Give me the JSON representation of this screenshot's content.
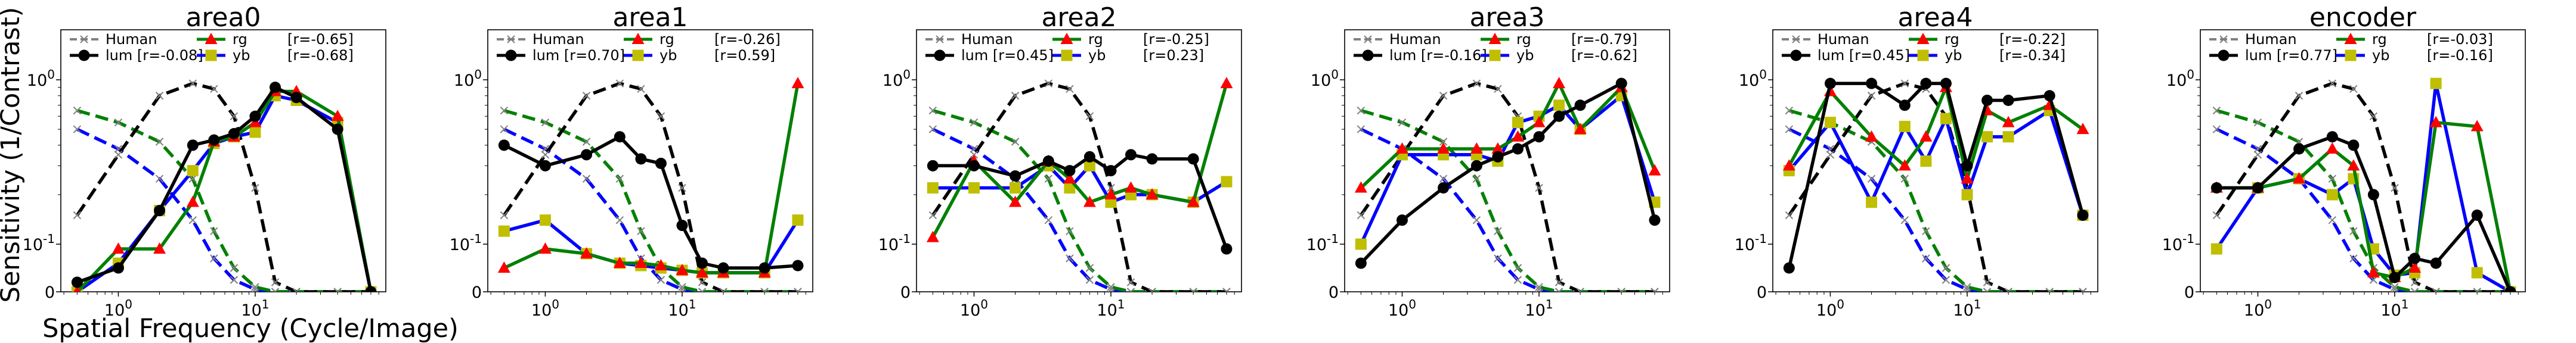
{
  "figure": {
    "ylabel": "Sensitivity (1/Contrast)",
    "xlabel": "Spatial Frequency (Cycle/Image)"
  },
  "colors": {
    "human": "#808080",
    "lum": "#000000",
    "rg": "#008000",
    "yb": "#0000ff",
    "rg_marker": "#ff0000",
    "yb_marker": "#bfbf00",
    "human_lum": "#000000",
    "human_rg": "#008000",
    "human_yb": "#0000ff"
  },
  "chart_data": [
    {
      "type": "line",
      "title": "area0",
      "x_scale": "log",
      "y_scale": "symlog",
      "xlim": [
        0.38,
        90
      ],
      "xticks": [
        {
          "value": 1,
          "label": "10^0"
        },
        {
          "value": 10,
          "label": "10^1"
        }
      ],
      "yticks": [
        {
          "value": 0,
          "label": "0"
        },
        {
          "value": 0.1,
          "label": "10^-1"
        },
        {
          "value": 1,
          "label": "10^0"
        }
      ],
      "legend": {
        "human": "Human",
        "lum": "lum [r=-0.08]",
        "rg": "rg",
        "yb": "yb",
        "rg_r": "[r=-0.65]",
        "yb_r": "[r=-0.68]"
      },
      "x": [
        0.5,
        1.0,
        2.0,
        3.5,
        5.0,
        7.0,
        10.0,
        14.0,
        20.0,
        40.0,
        70.0
      ],
      "series": [
        {
          "name": "lum",
          "values": [
            0.02,
            0.05,
            0.16,
            0.4,
            0.43,
            0.47,
            0.6,
            0.9,
            0.78,
            0.5,
            0.0
          ]
        },
        {
          "name": "rg",
          "values": [
            0.0,
            0.09,
            0.09,
            0.18,
            0.42,
            0.45,
            0.55,
            0.85,
            0.85,
            0.6,
            0.0
          ]
        },
        {
          "name": "yb",
          "values": [
            0.0,
            0.06,
            0.16,
            0.28,
            0.41,
            0.45,
            0.48,
            0.8,
            0.75,
            0.55,
            0.0
          ]
        },
        {
          "name": "human_lum",
          "values": [
            0.15,
            0.35,
            0.8,
            0.95,
            0.88,
            0.6,
            0.22,
            0.02,
            0.0,
            0.0,
            0.0
          ]
        },
        {
          "name": "human_rg",
          "values": [
            0.65,
            0.55,
            0.42,
            0.25,
            0.12,
            0.05,
            0.01,
            0.0,
            0.0,
            0.0,
            0.0
          ]
        },
        {
          "name": "human_yb",
          "values": [
            0.5,
            0.38,
            0.25,
            0.14,
            0.07,
            0.025,
            0.005,
            0.0,
            0.0,
            0.0,
            0.0
          ]
        }
      ]
    },
    {
      "type": "line",
      "title": "area1",
      "x_scale": "log",
      "y_scale": "symlog",
      "xlim": [
        0.38,
        90
      ],
      "xticks": [
        {
          "value": 1,
          "label": "10^0"
        },
        {
          "value": 10,
          "label": "10^1"
        }
      ],
      "yticks": [
        {
          "value": 0,
          "label": "0"
        },
        {
          "value": 0.1,
          "label": "10^-1"
        },
        {
          "value": 1,
          "label": "10^0"
        }
      ],
      "legend": {
        "human": "Human",
        "lum": "lum [r=0.70]",
        "rg": "rg",
        "yb": "yb",
        "rg_r": "[r=-0.26]",
        "yb_r": "[r=0.59]"
      },
      "x": [
        0.5,
        1.0,
        2.0,
        3.5,
        5.0,
        7.0,
        10.0,
        14.0,
        20.0,
        40.0,
        70.0
      ],
      "series": [
        {
          "name": "lum",
          "values": [
            0.4,
            0.3,
            0.35,
            0.45,
            0.33,
            0.31,
            0.13,
            0.06,
            0.05,
            0.05,
            0.055
          ]
        },
        {
          "name": "rg",
          "values": [
            0.05,
            0.09,
            0.08,
            0.06,
            0.06,
            0.055,
            0.045,
            0.04,
            0.04,
            0.04,
            0.95
          ]
        },
        {
          "name": "yb",
          "values": [
            0.12,
            0.14,
            0.08,
            0.06,
            0.055,
            0.05,
            0.045,
            0.04,
            0.04,
            0.04,
            0.14
          ]
        },
        {
          "name": "human_lum",
          "values": [
            0.15,
            0.35,
            0.8,
            0.95,
            0.88,
            0.6,
            0.22,
            0.02,
            0.0,
            0.0,
            0.0
          ]
        },
        {
          "name": "human_rg",
          "values": [
            0.65,
            0.55,
            0.42,
            0.25,
            0.12,
            0.05,
            0.01,
            0.0,
            0.0,
            0.0,
            0.0
          ]
        },
        {
          "name": "human_yb",
          "values": [
            0.5,
            0.38,
            0.25,
            0.14,
            0.07,
            0.025,
            0.005,
            0.0,
            0.0,
            0.0,
            0.0
          ]
        }
      ]
    },
    {
      "type": "line",
      "title": "area2",
      "x_scale": "log",
      "y_scale": "symlog",
      "xlim": [
        0.38,
        90
      ],
      "xticks": [
        {
          "value": 1,
          "label": "10^0"
        },
        {
          "value": 10,
          "label": "10^1"
        }
      ],
      "yticks": [
        {
          "value": 0,
          "label": "0"
        },
        {
          "value": 0.1,
          "label": "10^-1"
        },
        {
          "value": 1,
          "label": "10^0"
        }
      ],
      "legend": {
        "human": "Human",
        "lum": "lum [r=0.45]",
        "rg": "rg",
        "yb": "yb",
        "rg_r": "[r=-0.25]",
        "yb_r": "[r=0.23]"
      },
      "x": [
        0.5,
        1.0,
        2.0,
        3.5,
        5.0,
        7.0,
        10.0,
        14.0,
        20.0,
        40.0,
        70.0
      ],
      "series": [
        {
          "name": "lum",
          "values": [
            0.3,
            0.3,
            0.26,
            0.32,
            0.28,
            0.34,
            0.28,
            0.35,
            0.33,
            0.33,
            0.09
          ]
        },
        {
          "name": "rg",
          "values": [
            0.11,
            0.32,
            0.18,
            0.32,
            0.25,
            0.18,
            0.2,
            0.22,
            0.2,
            0.18,
            0.95
          ]
        },
        {
          "name": "yb",
          "values": [
            0.22,
            0.22,
            0.22,
            0.3,
            0.22,
            0.3,
            0.18,
            0.2,
            0.2,
            0.18,
            0.24
          ]
        },
        {
          "name": "human_lum",
          "values": [
            0.15,
            0.35,
            0.8,
            0.95,
            0.88,
            0.6,
            0.22,
            0.02,
            0.0,
            0.0,
            0.0
          ]
        },
        {
          "name": "human_rg",
          "values": [
            0.65,
            0.55,
            0.42,
            0.25,
            0.12,
            0.05,
            0.01,
            0.0,
            0.0,
            0.0,
            0.0
          ]
        },
        {
          "name": "human_yb",
          "values": [
            0.5,
            0.38,
            0.25,
            0.14,
            0.07,
            0.025,
            0.005,
            0.0,
            0.0,
            0.0,
            0.0
          ]
        }
      ]
    },
    {
      "type": "line",
      "title": "area3",
      "x_scale": "log",
      "y_scale": "symlog",
      "xlim": [
        0.38,
        90
      ],
      "xticks": [
        {
          "value": 1,
          "label": "10^0"
        },
        {
          "value": 10,
          "label": "10^1"
        }
      ],
      "yticks": [
        {
          "value": 0,
          "label": "0"
        },
        {
          "value": 0.1,
          "label": "10^-1"
        },
        {
          "value": 1,
          "label": "10^0"
        }
      ],
      "legend": {
        "human": "Human",
        "lum": "lum [r=-0.16]",
        "rg": "rg",
        "yb": "yb",
        "rg_r": "[r=-0.79]",
        "yb_r": "[r=-0.62]"
      },
      "x": [
        0.5,
        1.0,
        2.0,
        3.5,
        5.0,
        7.0,
        10.0,
        14.0,
        20.0,
        40.0,
        70.0
      ],
      "series": [
        {
          "name": "lum",
          "values": [
            0.06,
            0.14,
            0.22,
            0.3,
            0.34,
            0.38,
            0.45,
            0.6,
            0.7,
            0.95,
            0.14
          ]
        },
        {
          "name": "rg",
          "values": [
            0.22,
            0.38,
            0.38,
            0.38,
            0.38,
            0.45,
            0.55,
            0.95,
            0.5,
            0.9,
            0.28
          ]
        },
        {
          "name": "yb",
          "values": [
            0.1,
            0.35,
            0.35,
            0.35,
            0.32,
            0.55,
            0.6,
            0.7,
            0.5,
            0.8,
            0.18
          ]
        },
        {
          "name": "human_lum",
          "values": [
            0.15,
            0.35,
            0.8,
            0.95,
            0.88,
            0.6,
            0.22,
            0.02,
            0.0,
            0.0,
            0.0
          ]
        },
        {
          "name": "human_rg",
          "values": [
            0.65,
            0.55,
            0.42,
            0.25,
            0.12,
            0.05,
            0.01,
            0.0,
            0.0,
            0.0,
            0.0
          ]
        },
        {
          "name": "human_yb",
          "values": [
            0.5,
            0.38,
            0.25,
            0.14,
            0.07,
            0.025,
            0.005,
            0.0,
            0.0,
            0.0,
            0.0
          ]
        }
      ]
    },
    {
      "type": "line",
      "title": "area4",
      "x_scale": "log",
      "y_scale": "symlog",
      "xlim": [
        0.38,
        90
      ],
      "xticks": [
        {
          "value": 1,
          "label": "10^0"
        },
        {
          "value": 10,
          "label": "10^1"
        }
      ],
      "yticks": [
        {
          "value": 0,
          "label": "0"
        },
        {
          "value": 0.1,
          "label": "10^-1"
        },
        {
          "value": 1,
          "label": "10^0"
        }
      ],
      "legend": {
        "human": "Human",
        "lum": "lum [r=0.45]",
        "rg": "rg",
        "yb": "yb",
        "rg_r": "[r=-0.22]",
        "yb_r": "[r=-0.34]"
      },
      "x": [
        0.5,
        1.0,
        2.0,
        3.5,
        5.0,
        7.0,
        10.0,
        14.0,
        20.0,
        40.0,
        70.0
      ],
      "series": [
        {
          "name": "lum",
          "values": [
            0.05,
            0.95,
            0.95,
            0.7,
            0.95,
            0.95,
            0.3,
            0.75,
            0.75,
            0.8,
            0.15
          ]
        },
        {
          "name": "rg",
          "values": [
            0.3,
            0.85,
            0.45,
            0.3,
            0.45,
            0.9,
            0.25,
            0.65,
            0.55,
            0.7,
            0.5
          ]
        },
        {
          "name": "yb",
          "values": [
            0.28,
            0.55,
            0.18,
            0.52,
            0.32,
            0.58,
            0.2,
            0.45,
            0.45,
            0.65,
            0.15
          ]
        },
        {
          "name": "human_lum",
          "values": [
            0.15,
            0.35,
            0.8,
            0.95,
            0.88,
            0.6,
            0.22,
            0.02,
            0.0,
            0.0,
            0.0
          ]
        },
        {
          "name": "human_rg",
          "values": [
            0.65,
            0.55,
            0.42,
            0.25,
            0.12,
            0.05,
            0.01,
            0.0,
            0.0,
            0.0,
            0.0
          ]
        },
        {
          "name": "human_yb",
          "values": [
            0.5,
            0.38,
            0.25,
            0.14,
            0.07,
            0.025,
            0.005,
            0.0,
            0.0,
            0.0,
            0.0
          ]
        }
      ]
    },
    {
      "type": "line",
      "title": "encoder",
      "x_scale": "log",
      "y_scale": "symlog",
      "xlim": [
        0.38,
        90
      ],
      "xticks": [
        {
          "value": 1,
          "label": "10^0"
        },
        {
          "value": 10,
          "label": "10^1"
        }
      ],
      "yticks": [
        {
          "value": 0,
          "label": "0"
        },
        {
          "value": 0.1,
          "label": "10^-1"
        },
        {
          "value": 1,
          "label": "10^0"
        }
      ],
      "legend": {
        "human": "Human",
        "lum": "lum [r=0.77]",
        "rg": "rg",
        "yb": "yb",
        "rg_r": "[r=-0.03]",
        "yb_r": "[r=-0.16]"
      },
      "x": [
        0.5,
        1.0,
        2.0,
        3.5,
        5.0,
        7.0,
        10.0,
        14.0,
        20.0,
        40.0,
        70.0
      ],
      "series": [
        {
          "name": "lum",
          "values": [
            0.22,
            0.22,
            0.38,
            0.45,
            0.4,
            0.2,
            0.03,
            0.07,
            0.06,
            0.15,
            0.0
          ]
        },
        {
          "name": "rg",
          "values": [
            0.22,
            0.22,
            0.25,
            0.38,
            0.3,
            0.04,
            0.03,
            0.05,
            0.55,
            0.52,
            0.0
          ]
        },
        {
          "name": "yb",
          "values": [
            0.09,
            0.22,
            0.25,
            0.2,
            0.25,
            0.09,
            0.035,
            0.04,
            0.95,
            0.04,
            0.0
          ]
        },
        {
          "name": "human_lum",
          "values": [
            0.15,
            0.35,
            0.8,
            0.95,
            0.88,
            0.6,
            0.22,
            0.02,
            0.0,
            0.0,
            0.0
          ]
        },
        {
          "name": "human_rg",
          "values": [
            0.65,
            0.55,
            0.42,
            0.25,
            0.12,
            0.05,
            0.01,
            0.0,
            0.0,
            0.0,
            0.0
          ]
        },
        {
          "name": "human_yb",
          "values": [
            0.5,
            0.38,
            0.25,
            0.14,
            0.07,
            0.025,
            0.005,
            0.0,
            0.0,
            0.0,
            0.0
          ]
        }
      ]
    }
  ]
}
